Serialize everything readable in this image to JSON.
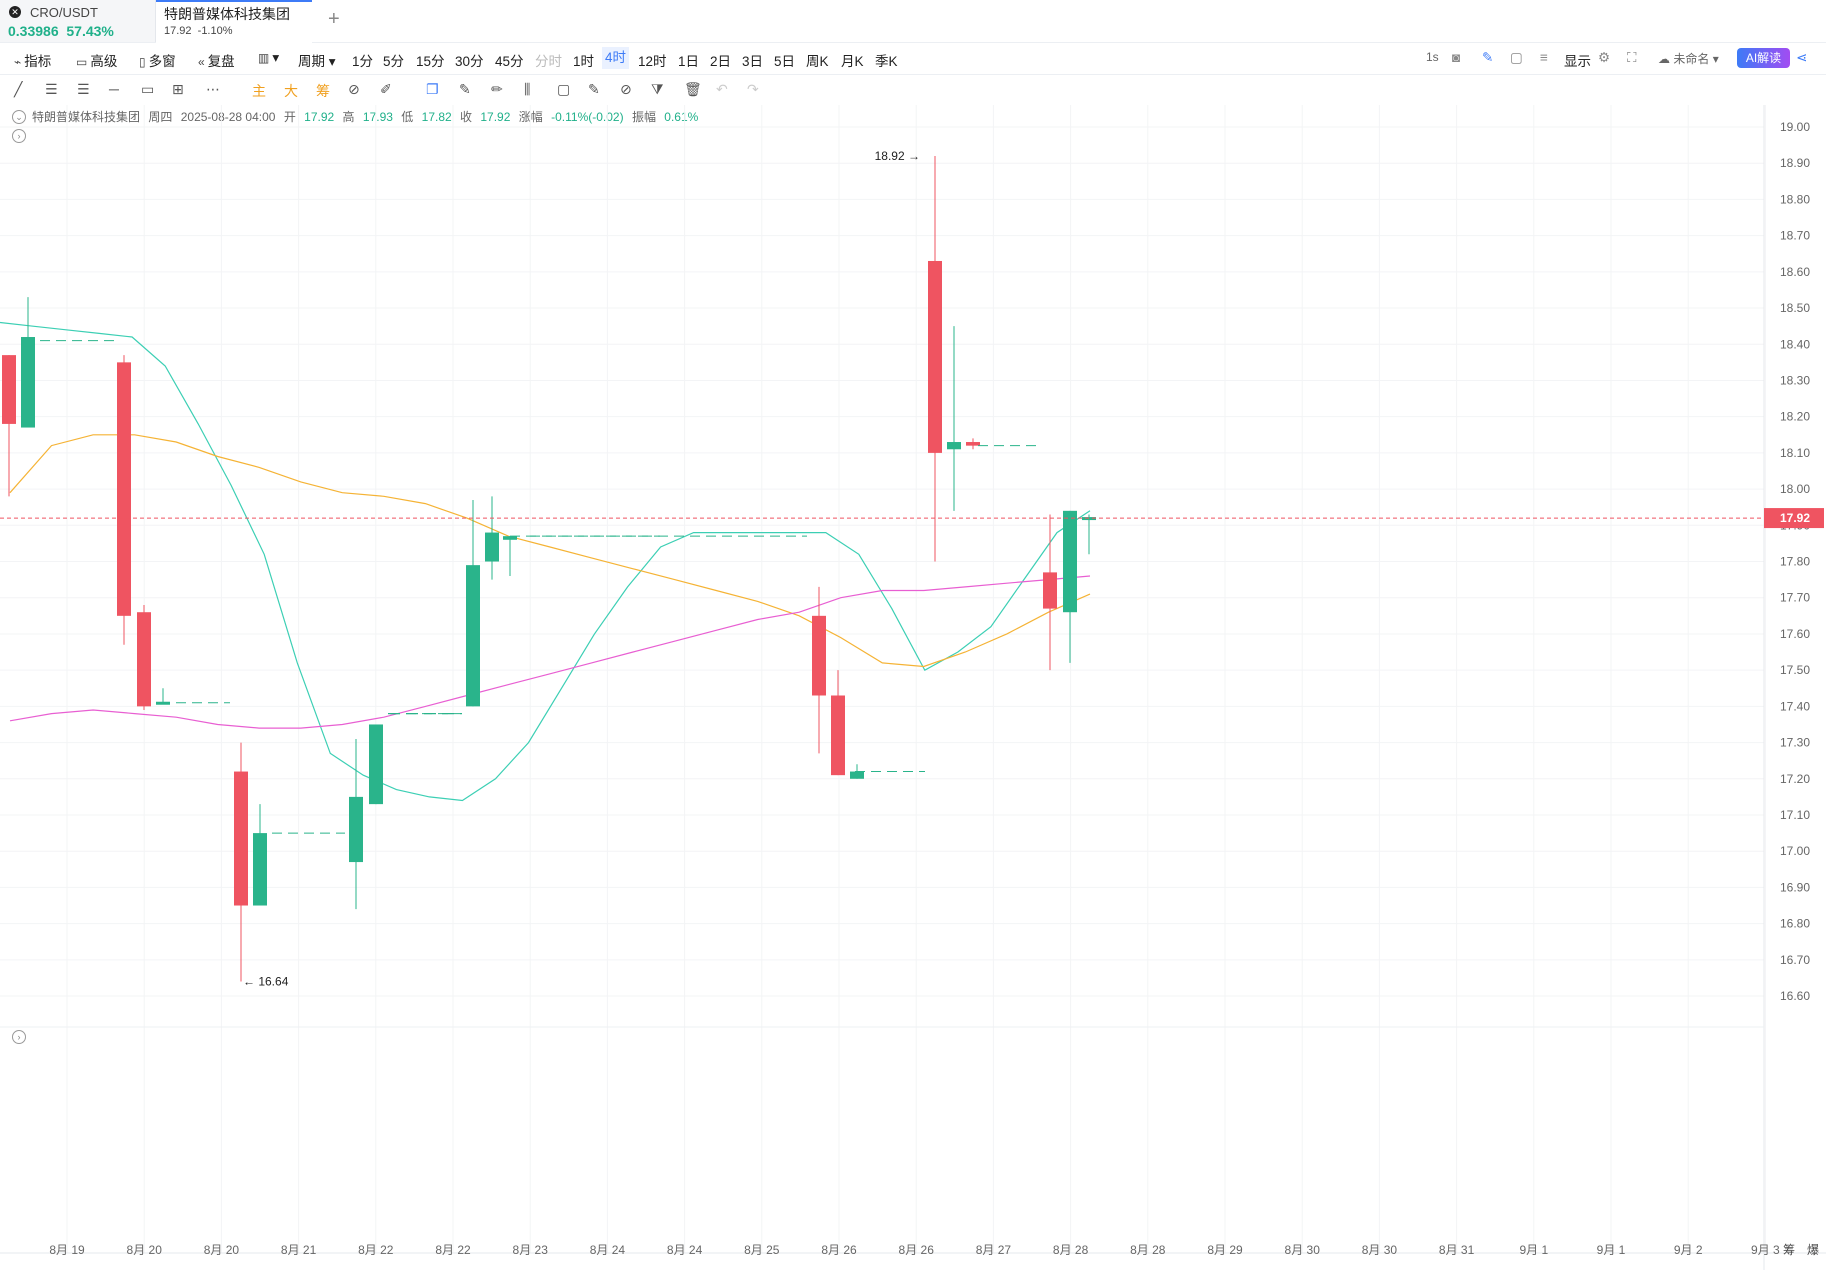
{
  "tabs": [
    {
      "title": "CRO/USDT",
      "price": "0.33986",
      "change": "57.43%"
    },
    {
      "title": "特朗普媒体科技集团",
      "price": "17.92",
      "change": "-1.10%"
    }
  ],
  "toolbar": {
    "indicator": "指标",
    "advanced": "高级",
    "multi_window": "多窗",
    "replay": "复盘",
    "period": "周期",
    "intervals": [
      "1分",
      "5分",
      "15分",
      "30分",
      "45分",
      "分时",
      "1时",
      "4时",
      "12时",
      "1日",
      "2日",
      "3日",
      "5日",
      "周K",
      "月K",
      "季K"
    ],
    "active_interval": "4时",
    "right_1s": "1s",
    "display": "显示",
    "unnamed": "未命名",
    "ai": "AI解读"
  },
  "drawbar": {
    "main": "主",
    "big": "大",
    "chip": "筹"
  },
  "info": {
    "name": "特朗普媒体科技集团",
    "weekday": "周四",
    "datetime": "2025-08-28 04:00",
    "open_label": "开",
    "open": "17.92",
    "high_label": "高",
    "high": "17.93",
    "low_label": "低",
    "low": "17.82",
    "close_label": "收",
    "close": "17.92",
    "chg_label": "涨幅",
    "chg": "-0.11%(-0.02)",
    "amp_label": "振幅",
    "amp": "0.61%"
  },
  "colors": {
    "up": "#2ab48b",
    "down": "#ef5461",
    "ma_fast": "#3ccfb4",
    "ma_mid": "#f5b335",
    "ma_slow": "#e85fd2",
    "accent": "#3d7bf7"
  },
  "chart_data": {
    "type": "candlestick",
    "ylim": [
      16.55,
      19.03
    ],
    "y_ticks": [
      "19.00",
      "18.90",
      "18.80",
      "18.70",
      "18.60",
      "18.50",
      "18.40",
      "18.30",
      "18.20",
      "18.10",
      "18.00",
      "17.90",
      "17.80",
      "17.70",
      "17.60",
      "17.50",
      "17.40",
      "17.30",
      "17.20",
      "17.10",
      "17.00",
      "16.90",
      "16.80",
      "16.70",
      "16.60"
    ],
    "x_labels": [
      "8月 19",
      "8月 20",
      "8月 20",
      "8月 21",
      "8月 22",
      "8月 22",
      "8月 23",
      "8月 24",
      "8月 24",
      "8月 25",
      "8月 26",
      "8月 26",
      "8月 27",
      "8月 28",
      "8月 28",
      "8月 29",
      "8月 30",
      "8月 30",
      "8月 31",
      "9月 1",
      "9月 1",
      "9月 2",
      "9月 3"
    ],
    "last_price": "17.92",
    "high_marker": "18.92",
    "low_marker": "16.64",
    "bottom_right": [
      "筹",
      "爆"
    ],
    "candles": [
      {
        "o": 18.37,
        "h": 18.37,
        "l": 17.98,
        "c": 18.18
      },
      {
        "o": 18.17,
        "h": 18.53,
        "l": 18.17,
        "c": 18.42
      },
      {
        "o": 18.35,
        "h": 18.37,
        "l": 17.57,
        "c": 17.65
      },
      {
        "o": 17.66,
        "h": 17.68,
        "l": 17.39,
        "c": 17.4
      },
      {
        "o": 17.41,
        "h": 17.45,
        "l": 17.41,
        "c": 17.41
      },
      {
        "o": 17.22,
        "h": 17.3,
        "l": 16.64,
        "c": 16.85
      },
      {
        "o": 16.85,
        "h": 17.13,
        "l": 16.85,
        "c": 17.05
      },
      {
        "o": 16.97,
        "h": 17.31,
        "l": 16.84,
        "c": 17.15
      },
      {
        "o": 17.13,
        "h": 17.35,
        "l": 17.13,
        "c": 17.35
      },
      {
        "o": 17.38,
        "h": 17.38,
        "l": 17.38,
        "c": 17.38
      },
      {
        "o": 17.4,
        "h": 17.97,
        "l": 17.4,
        "c": 17.79
      },
      {
        "o": 17.8,
        "h": 17.98,
        "l": 17.75,
        "c": 17.88
      },
      {
        "o": 17.86,
        "h": 17.87,
        "l": 17.76,
        "c": 17.87
      },
      {
        "o": 17.65,
        "h": 17.73,
        "l": 17.27,
        "c": 17.43
      },
      {
        "o": 17.43,
        "h": 17.5,
        "l": 17.21,
        "c": 17.21
      },
      {
        "o": 17.2,
        "h": 17.24,
        "l": 17.2,
        "c": 17.22
      },
      {
        "o": 18.63,
        "h": 18.92,
        "l": 17.8,
        "c": 18.1
      },
      {
        "o": 18.11,
        "h": 18.45,
        "l": 17.94,
        "c": 18.13
      },
      {
        "o": 18.13,
        "h": 18.14,
        "l": 18.11,
        "c": 18.12
      },
      {
        "o": 17.77,
        "h": 17.93,
        "l": 17.5,
        "c": 17.67
      },
      {
        "o": 17.66,
        "h": 17.94,
        "l": 17.52,
        "c": 17.94
      },
      {
        "o": 17.92,
        "h": 17.93,
        "l": 17.82,
        "c": 17.92
      }
    ],
    "series": [
      {
        "values": [
          18.46,
          18.45,
          18.44,
          18.43,
          18.42,
          18.34,
          18.18,
          18.01,
          17.82,
          17.52,
          17.27,
          17.21,
          17.17,
          17.15,
          17.14,
          17.2,
          17.3,
          17.45,
          17.6,
          17.73,
          17.84,
          17.88,
          17.88,
          17.88,
          17.88,
          17.88,
          17.82,
          17.67,
          17.5,
          17.55,
          17.62,
          17.75,
          17.88,
          17.94
        ]
      },
      {
        "values": [
          17.99,
          18.12,
          18.15,
          18.15,
          18.13,
          18.09,
          18.06,
          18.02,
          17.99,
          17.98,
          17.96,
          17.92,
          17.87,
          17.84,
          17.81,
          17.78,
          17.75,
          17.72,
          17.69,
          17.65,
          17.59,
          17.52,
          17.51,
          17.55,
          17.6,
          17.66,
          17.71
        ]
      },
      {
        "values": [
          17.36,
          17.38,
          17.39,
          17.38,
          17.37,
          17.35,
          17.34,
          17.34,
          17.35,
          17.37,
          17.4,
          17.43,
          17.46,
          17.49,
          17.52,
          17.55,
          17.58,
          17.61,
          17.64,
          17.66,
          17.7,
          17.72,
          17.72,
          17.73,
          17.74,
          17.75,
          17.76
        ]
      }
    ]
  }
}
